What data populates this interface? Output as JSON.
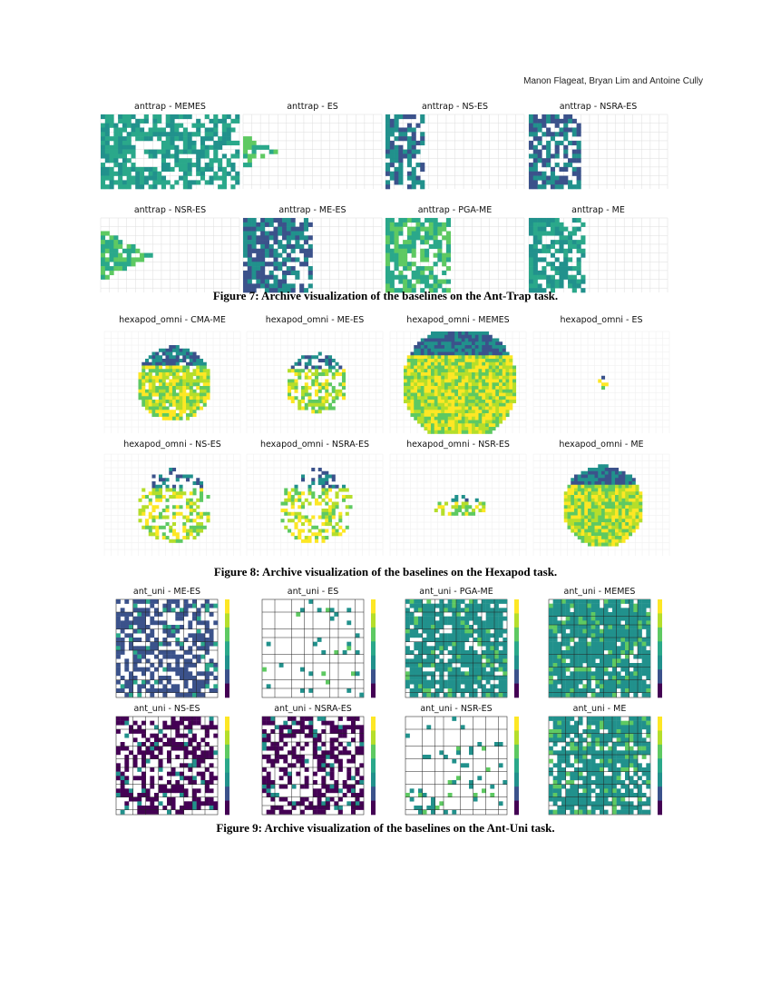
{
  "header": {
    "running_head": "Manon Flageat, Bryan Lim and Antoine Cully"
  },
  "figures": [
    {
      "panels": [
        "anttrap - MEMES",
        "anttrap - ES",
        "anttrap - NS-ES",
        "anttrap - NSRA-ES",
        "anttrap - NSR-ES",
        "anttrap - ME-ES",
        "anttrap - PGA-ME",
        "anttrap - ME"
      ],
      "caption": "Figure 7: Archive visualization of the baselines on the Ant-Trap task."
    },
    {
      "panels": [
        "hexapod_omni - CMA-ME",
        "hexapod_omni - ME-ES",
        "hexapod_omni - MEMES",
        "hexapod_omni - ES",
        "hexapod_omni - NS-ES",
        "hexapod_omni - NSRA-ES",
        "hexapod_omni - NSR-ES",
        "hexapod_omni - ME"
      ],
      "caption": "Figure 8: Archive visualization of the baselines on the Hexapod task."
    },
    {
      "panels": [
        "ant_uni - ME-ES",
        "ant_uni - ES",
        "ant_uni - PGA-ME",
        "ant_uni - MEMES",
        "ant_uni - NS-ES",
        "ant_uni - NSRA-ES",
        "ant_uni - NSR-ES",
        "ant_uni - ME"
      ],
      "caption": "Figure 9: Archive visualization of the baselines on the Ant-Uni task."
    }
  ]
}
